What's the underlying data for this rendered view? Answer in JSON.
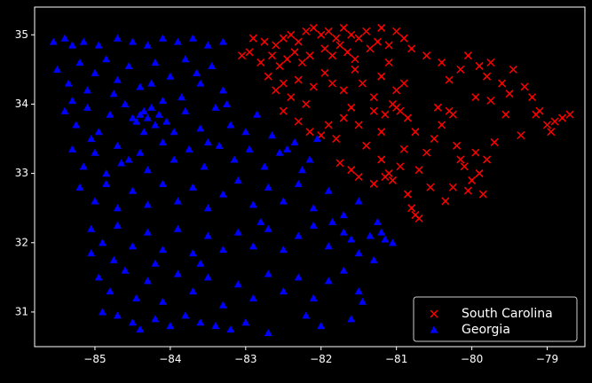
{
  "chart_data": {
    "type": "scatter",
    "title": "",
    "xlabel": "",
    "ylabel": "",
    "xlim": [
      -85.8,
      -78.5
    ],
    "ylim": [
      30.5,
      35.4
    ],
    "x_ticks": [
      -85,
      -84,
      -83,
      -82,
      -81,
      -80,
      -79
    ],
    "y_ticks": [
      31,
      32,
      33,
      34,
      35
    ],
    "x_tick_labels": [
      "−85",
      "−84",
      "−83",
      "−82",
      "−81",
      "−80",
      "−79"
    ],
    "y_tick_labels": [
      "31",
      "32",
      "33",
      "34",
      "35"
    ],
    "grid": false,
    "legend_position": "lower-right",
    "background": "#000000",
    "series": [
      {
        "name": "South Carolina",
        "marker": "x",
        "color": "#ff0000",
        "points": [
          [
            -82.9,
            34.95
          ],
          [
            -82.75,
            34.9
          ],
          [
            -82.6,
            34.85
          ],
          [
            -82.5,
            34.95
          ],
          [
            -82.4,
            35.0
          ],
          [
            -82.3,
            34.9
          ],
          [
            -82.2,
            35.05
          ],
          [
            -82.1,
            35.1
          ],
          [
            -82.0,
            35.0
          ],
          [
            -81.9,
            35.05
          ],
          [
            -81.8,
            34.95
          ],
          [
            -81.7,
            35.1
          ],
          [
            -81.6,
            35.0
          ],
          [
            -81.5,
            34.95
          ],
          [
            -81.4,
            35.05
          ],
          [
            -81.2,
            35.1
          ],
          [
            -81.0,
            35.05
          ],
          [
            -80.9,
            34.95
          ],
          [
            -83.05,
            34.7
          ],
          [
            -82.95,
            34.75
          ],
          [
            -82.8,
            34.6
          ],
          [
            -82.65,
            34.7
          ],
          [
            -82.55,
            34.55
          ],
          [
            -82.45,
            34.65
          ],
          [
            -82.35,
            34.75
          ],
          [
            -82.25,
            34.6
          ],
          [
            -82.15,
            34.7
          ],
          [
            -81.95,
            34.8
          ],
          [
            -81.85,
            34.7
          ],
          [
            -81.75,
            34.85
          ],
          [
            -81.65,
            34.75
          ],
          [
            -81.55,
            34.65
          ],
          [
            -81.35,
            34.8
          ],
          [
            -81.25,
            34.9
          ],
          [
            -81.1,
            34.85
          ],
          [
            -80.8,
            34.8
          ],
          [
            -80.6,
            34.7
          ],
          [
            -80.4,
            34.6
          ],
          [
            -82.7,
            34.4
          ],
          [
            -82.6,
            34.2
          ],
          [
            -82.5,
            34.3
          ],
          [
            -82.4,
            34.1
          ],
          [
            -82.3,
            34.35
          ],
          [
            -82.2,
            34.0
          ],
          [
            -82.1,
            34.25
          ],
          [
            -81.95,
            34.45
          ],
          [
            -81.85,
            34.3
          ],
          [
            -81.7,
            34.2
          ],
          [
            -81.55,
            34.5
          ],
          [
            -81.45,
            34.3
          ],
          [
            -81.3,
            34.1
          ],
          [
            -81.2,
            34.4
          ],
          [
            -81.1,
            34.6
          ],
          [
            -81.0,
            34.2
          ],
          [
            -80.9,
            34.3
          ],
          [
            -82.5,
            33.9
          ],
          [
            -82.3,
            33.75
          ],
          [
            -82.15,
            33.6
          ],
          [
            -82.0,
            33.55
          ],
          [
            -81.9,
            33.7
          ],
          [
            -81.8,
            33.5
          ],
          [
            -81.7,
            33.8
          ],
          [
            -81.6,
            33.95
          ],
          [
            -81.5,
            33.7
          ],
          [
            -81.4,
            33.4
          ],
          [
            -81.3,
            33.9
          ],
          [
            -81.2,
            33.6
          ],
          [
            -81.15,
            33.85
          ],
          [
            -81.05,
            34.0
          ],
          [
            -81.0,
            33.95
          ],
          [
            -80.95,
            33.9
          ],
          [
            -80.85,
            33.8
          ],
          [
            -80.75,
            33.6
          ],
          [
            -81.2,
            33.2
          ],
          [
            -81.1,
            33.0
          ],
          [
            -81.05,
            32.9
          ],
          [
            -80.95,
            33.1
          ],
          [
            -80.85,
            32.7
          ],
          [
            -80.8,
            32.5
          ],
          [
            -80.75,
            32.4
          ],
          [
            -80.7,
            32.35
          ],
          [
            -80.6,
            33.3
          ],
          [
            -80.5,
            33.5
          ],
          [
            -80.4,
            33.7
          ],
          [
            -80.3,
            33.9
          ],
          [
            -80.2,
            33.4
          ],
          [
            -80.1,
            33.1
          ],
          [
            -80.0,
            32.9
          ],
          [
            -79.9,
            33.0
          ],
          [
            -79.85,
            32.7
          ],
          [
            -79.8,
            33.2
          ],
          [
            -79.7,
            33.45
          ],
          [
            -80.3,
            34.35
          ],
          [
            -80.15,
            34.5
          ],
          [
            -80.05,
            34.7
          ],
          [
            -79.9,
            34.55
          ],
          [
            -79.8,
            34.4
          ],
          [
            -79.75,
            34.6
          ],
          [
            -79.6,
            34.3
          ],
          [
            -79.5,
            34.15
          ],
          [
            -79.45,
            34.5
          ],
          [
            -79.3,
            34.25
          ],
          [
            -79.2,
            34.1
          ],
          [
            -79.1,
            33.9
          ],
          [
            -79.0,
            33.7
          ],
          [
            -78.9,
            33.75
          ],
          [
            -78.8,
            33.8
          ],
          [
            -78.7,
            33.85
          ],
          [
            -78.95,
            33.6
          ],
          [
            -79.15,
            33.85
          ],
          [
            -79.35,
            33.55
          ],
          [
            -79.55,
            33.85
          ],
          [
            -79.75,
            34.05
          ],
          [
            -79.95,
            34.1
          ],
          [
            -80.25,
            33.85
          ],
          [
            -80.45,
            33.95
          ],
          [
            -81.75,
            33.15
          ],
          [
            -81.6,
            33.05
          ],
          [
            -81.5,
            32.95
          ],
          [
            -81.3,
            32.85
          ],
          [
            -81.15,
            32.95
          ],
          [
            -80.9,
            33.35
          ],
          [
            -80.7,
            33.05
          ],
          [
            -80.55,
            32.8
          ],
          [
            -80.35,
            32.6
          ],
          [
            -80.25,
            32.8
          ],
          [
            -80.05,
            32.75
          ],
          [
            -80.15,
            33.2
          ],
          [
            -79.95,
            33.3
          ]
        ]
      },
      {
        "name": "Georgia",
        "marker": "triangle",
        "color": "#0000ff",
        "points": [
          [
            -85.55,
            34.9
          ],
          [
            -85.4,
            34.95
          ],
          [
            -85.3,
            34.85
          ],
          [
            -85.15,
            34.9
          ],
          [
            -84.95,
            34.85
          ],
          [
            -84.7,
            34.95
          ],
          [
            -84.5,
            34.9
          ],
          [
            -84.3,
            34.85
          ],
          [
            -84.1,
            34.95
          ],
          [
            -83.9,
            34.9
          ],
          [
            -83.7,
            34.95
          ],
          [
            -83.5,
            34.85
          ],
          [
            -83.3,
            34.9
          ],
          [
            -85.5,
            34.5
          ],
          [
            -85.35,
            34.3
          ],
          [
            -85.2,
            34.6
          ],
          [
            -85.1,
            34.2
          ],
          [
            -85.0,
            34.45
          ],
          [
            -84.85,
            34.65
          ],
          [
            -84.7,
            34.35
          ],
          [
            -84.55,
            34.55
          ],
          [
            -84.4,
            34.25
          ],
          [
            -84.2,
            34.6
          ],
          [
            -84.0,
            34.4
          ],
          [
            -83.8,
            34.65
          ],
          [
            -83.6,
            34.3
          ],
          [
            -83.45,
            34.55
          ],
          [
            -83.3,
            34.2
          ],
          [
            -85.4,
            33.9
          ],
          [
            -85.25,
            33.7
          ],
          [
            -85.1,
            33.95
          ],
          [
            -84.95,
            33.6
          ],
          [
            -84.8,
            33.85
          ],
          [
            -84.6,
            34.0
          ],
          [
            -84.5,
            33.8
          ],
          [
            -84.45,
            33.75
          ],
          [
            -84.4,
            33.85
          ],
          [
            -84.35,
            33.9
          ],
          [
            -84.3,
            33.8
          ],
          [
            -84.25,
            33.95
          ],
          [
            -84.2,
            33.7
          ],
          [
            -84.15,
            33.85
          ],
          [
            -84.1,
            34.05
          ],
          [
            -83.95,
            33.6
          ],
          [
            -83.8,
            33.9
          ],
          [
            -83.6,
            33.65
          ],
          [
            -83.4,
            33.95
          ],
          [
            -83.2,
            33.7
          ],
          [
            -83.0,
            33.6
          ],
          [
            -85.3,
            33.35
          ],
          [
            -85.15,
            33.1
          ],
          [
            -85.0,
            33.3
          ],
          [
            -84.85,
            33.0
          ],
          [
            -84.7,
            33.4
          ],
          [
            -84.55,
            33.2
          ],
          [
            -84.4,
            33.3
          ],
          [
            -84.3,
            33.05
          ],
          [
            -84.1,
            33.45
          ],
          [
            -83.95,
            33.2
          ],
          [
            -83.75,
            33.35
          ],
          [
            -83.55,
            33.1
          ],
          [
            -83.35,
            33.4
          ],
          [
            -83.15,
            33.2
          ],
          [
            -82.95,
            33.35
          ],
          [
            -82.75,
            33.1
          ],
          [
            -82.55,
            33.3
          ],
          [
            -82.35,
            33.45
          ],
          [
            -82.15,
            33.2
          ],
          [
            -82.05,
            33.5
          ],
          [
            -85.2,
            32.8
          ],
          [
            -85.0,
            32.6
          ],
          [
            -84.85,
            32.85
          ],
          [
            -84.7,
            32.5
          ],
          [
            -84.5,
            32.75
          ],
          [
            -84.3,
            32.55
          ],
          [
            -84.1,
            32.85
          ],
          [
            -83.9,
            32.6
          ],
          [
            -83.7,
            32.8
          ],
          [
            -83.5,
            32.5
          ],
          [
            -83.3,
            32.7
          ],
          [
            -83.1,
            32.9
          ],
          [
            -82.9,
            32.55
          ],
          [
            -82.7,
            32.8
          ],
          [
            -82.5,
            32.6
          ],
          [
            -82.3,
            32.85
          ],
          [
            -82.1,
            32.5
          ],
          [
            -81.9,
            32.75
          ],
          [
            -81.7,
            32.4
          ],
          [
            -81.5,
            32.6
          ],
          [
            -85.05,
            32.2
          ],
          [
            -84.9,
            32.0
          ],
          [
            -84.7,
            32.25
          ],
          [
            -84.5,
            31.95
          ],
          [
            -84.3,
            32.15
          ],
          [
            -84.1,
            31.9
          ],
          [
            -83.9,
            32.2
          ],
          [
            -83.7,
            31.85
          ],
          [
            -83.5,
            32.1
          ],
          [
            -83.3,
            31.9
          ],
          [
            -83.1,
            32.15
          ],
          [
            -82.9,
            31.95
          ],
          [
            -82.7,
            32.2
          ],
          [
            -82.5,
            31.9
          ],
          [
            -82.3,
            32.1
          ],
          [
            -82.1,
            32.25
          ],
          [
            -81.9,
            31.95
          ],
          [
            -81.7,
            32.15
          ],
          [
            -81.5,
            31.85
          ],
          [
            -81.35,
            32.1
          ],
          [
            -81.25,
            32.3
          ],
          [
            -81.15,
            32.05
          ],
          [
            -81.05,
            32.0
          ],
          [
            -81.2,
            32.15
          ],
          [
            -81.3,
            31.75
          ],
          [
            -84.95,
            31.5
          ],
          [
            -84.8,
            31.3
          ],
          [
            -84.6,
            31.6
          ],
          [
            -84.45,
            31.2
          ],
          [
            -84.3,
            31.45
          ],
          [
            -84.1,
            31.15
          ],
          [
            -83.9,
            31.55
          ],
          [
            -83.7,
            31.3
          ],
          [
            -83.5,
            31.5
          ],
          [
            -83.3,
            31.1
          ],
          [
            -83.1,
            31.4
          ],
          [
            -82.9,
            31.2
          ],
          [
            -82.7,
            31.55
          ],
          [
            -82.5,
            31.3
          ],
          [
            -82.3,
            31.5
          ],
          [
            -82.1,
            31.2
          ],
          [
            -81.9,
            31.45
          ],
          [
            -81.7,
            31.6
          ],
          [
            -81.5,
            31.3
          ],
          [
            -81.45,
            31.15
          ],
          [
            -84.9,
            31.0
          ],
          [
            -84.7,
            30.95
          ],
          [
            -84.5,
            30.85
          ],
          [
            -84.4,
            30.75
          ],
          [
            -84.2,
            30.9
          ],
          [
            -84.0,
            30.8
          ],
          [
            -83.8,
            30.95
          ],
          [
            -83.6,
            30.85
          ],
          [
            -83.4,
            30.8
          ],
          [
            -83.2,
            30.75
          ],
          [
            -83.0,
            30.85
          ],
          [
            -82.7,
            30.7
          ],
          [
            -82.2,
            30.95
          ],
          [
            -82.0,
            30.8
          ],
          [
            -81.6,
            30.9
          ],
          [
            -85.3,
            34.05
          ],
          [
            -85.05,
            33.5
          ],
          [
            -84.75,
            34.15
          ],
          [
            -84.65,
            33.15
          ],
          [
            -84.35,
            33.6
          ],
          [
            -84.25,
            34.3
          ],
          [
            -84.05,
            33.75
          ],
          [
            -83.85,
            34.1
          ],
          [
            -83.65,
            34.45
          ],
          [
            -83.5,
            33.45
          ],
          [
            -83.25,
            34.0
          ],
          [
            -82.85,
            33.85
          ],
          [
            -82.65,
            33.55
          ],
          [
            -82.45,
            33.35
          ],
          [
            -82.25,
            33.05
          ],
          [
            -82.8,
            32.3
          ],
          [
            -83.6,
            31.7
          ],
          [
            -84.2,
            31.7
          ],
          [
            -84.75,
            31.75
          ],
          [
            -85.05,
            31.85
          ],
          [
            -81.85,
            32.3
          ],
          [
            -81.6,
            32.05
          ]
        ]
      }
    ]
  }
}
